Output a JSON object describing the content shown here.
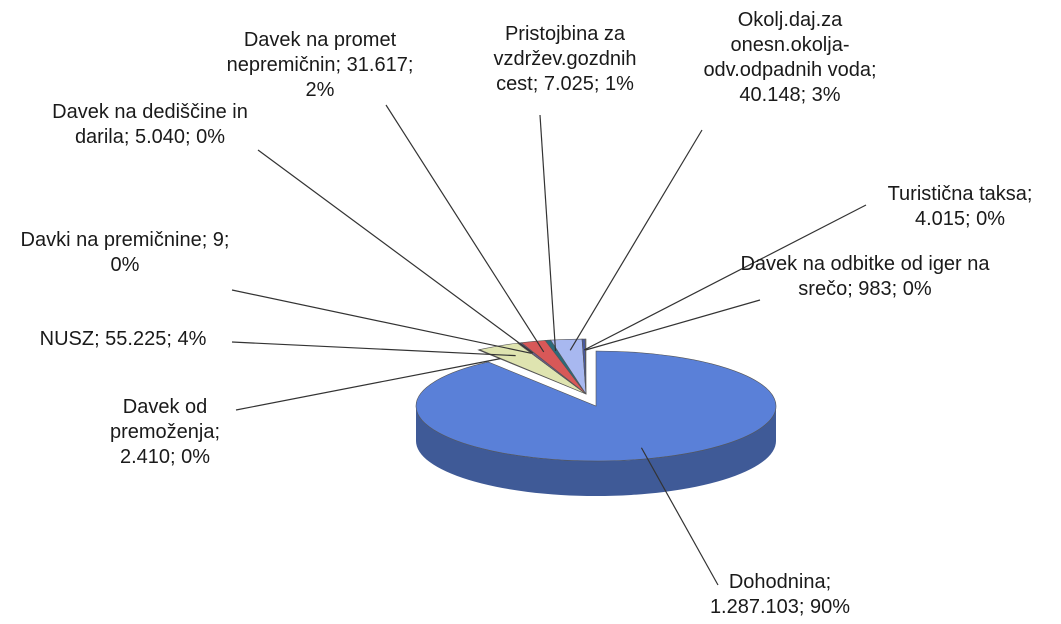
{
  "chart_data": {
    "type": "pie",
    "labels": [
      "Dohodnina; 1.287.103; 90%",
      "Davek od premoženja; 2.410; 0%",
      "NUSZ; 55.225; 4%",
      "Davki na premičnine; 9; 0%",
      "Davek na dediščine in darila; 5.040; 0%",
      "Davek na promet nepremičnin; 31.617; 2%",
      "Pristojbina za vzdržev.gozdnih cest; 7.025; 1%",
      "Okolj.daj.za onesn.okolja-odv.odpadnih voda; 40.148; 3%",
      "Turistična taksa; 4.015; 0%",
      "Davek na odbitke od iger na srečo; 983; 0%"
    ],
    "values": [
      1287103,
      2410,
      55225,
      9,
      5040,
      31617,
      7025,
      40148,
      4015,
      983
    ],
    "colors": [
      "#5a80d8",
      "#3a3030",
      "#dfe4b0",
      "#8a9a70",
      "#6a5a8a",
      "#d85858",
      "#2a6a7a",
      "#a8b8f0",
      "#4a5aa0",
      "#c8c0a8"
    ]
  }
}
